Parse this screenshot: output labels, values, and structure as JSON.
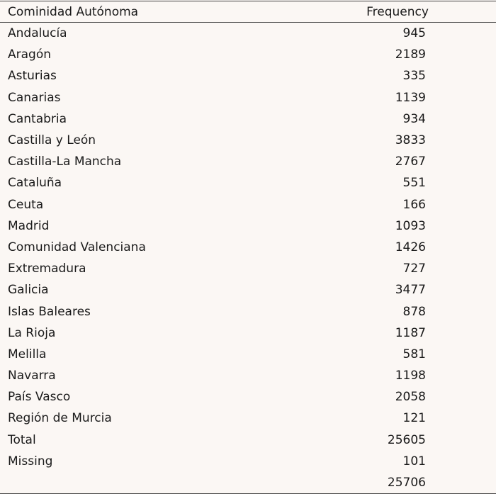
{
  "table": {
    "columns": [
      "Cominidad Autónoma",
      "Frequency"
    ],
    "rows": [
      [
        "Andalucía",
        945
      ],
      [
        "Aragón",
        2189
      ],
      [
        "Asturias",
        335
      ],
      [
        "Canarias",
        1139
      ],
      [
        "Cantabria",
        934
      ],
      [
        "Castilla y León",
        3833
      ],
      [
        "Castilla-La Mancha",
        2767
      ],
      [
        "Cataluña",
        551
      ],
      [
        "Ceuta",
        166
      ],
      [
        "Madrid",
        1093
      ],
      [
        "Comunidad Valenciana",
        1426
      ],
      [
        "Extremadura",
        727
      ],
      [
        "Galicia",
        3477
      ],
      [
        "Islas Baleares",
        878
      ],
      [
        "La Rioja",
        1187
      ],
      [
        "Melilla",
        581
      ],
      [
        "Navarra",
        1198
      ],
      [
        "País Vasco",
        2058
      ],
      [
        "Región de Murcia",
        121
      ],
      [
        "Total",
        25605
      ],
      [
        "Missing",
        101
      ],
      [
        null,
        25706
      ]
    ]
  }
}
